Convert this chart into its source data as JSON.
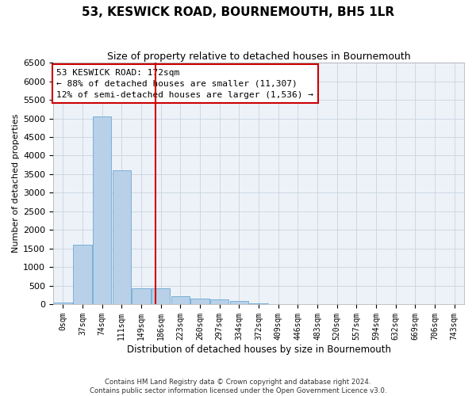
{
  "title": "53, KESWICK ROAD, BOURNEMOUTH, BH5 1LR",
  "subtitle": "Size of property relative to detached houses in Bournemouth",
  "xlabel": "Distribution of detached houses by size in Bournemouth",
  "ylabel": "Number of detached properties",
  "bin_labels": [
    "0sqm",
    "37sqm",
    "74sqm",
    "111sqm",
    "149sqm",
    "186sqm",
    "223sqm",
    "260sqm",
    "297sqm",
    "334sqm",
    "372sqm",
    "409sqm",
    "446sqm",
    "483sqm",
    "520sqm",
    "557sqm",
    "594sqm",
    "632sqm",
    "669sqm",
    "706sqm",
    "743sqm"
  ],
  "bar_heights": [
    50,
    1600,
    5050,
    3600,
    420,
    420,
    220,
    155,
    120,
    90,
    30,
    0,
    0,
    0,
    0,
    0,
    0,
    0,
    0,
    0,
    0
  ],
  "bar_color": "#b8d0e8",
  "bar_edge_color": "#6aaad4",
  "grid_color": "#c8d4e0",
  "bg_color": "#edf2f8",
  "vline_x_data": 4.73,
  "vline_color": "#cc0000",
  "ylim": [
    0,
    6500
  ],
  "yticks": [
    0,
    500,
    1000,
    1500,
    2000,
    2500,
    3000,
    3500,
    4000,
    4500,
    5000,
    5500,
    6000,
    6500
  ],
  "annotation_title": "53 KESWICK ROAD: 172sqm",
  "annotation_line1": "← 88% of detached houses are smaller (11,307)",
  "annotation_line2": "12% of semi-detached houses are larger (1,536) →",
  "annotation_box_color": "#ffffff",
  "annotation_box_edge": "#cc0000",
  "footer_line1": "Contains HM Land Registry data © Crown copyright and database right 2024.",
  "footer_line2": "Contains public sector information licensed under the Open Government Licence v3.0."
}
